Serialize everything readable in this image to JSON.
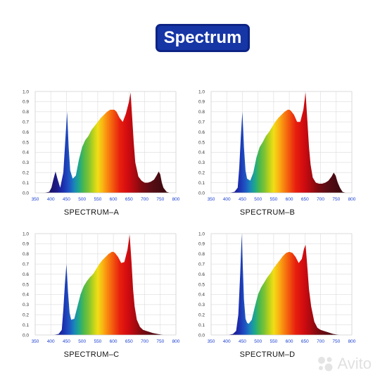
{
  "title": "Spectrum",
  "colors": {
    "badge": "#1636a6",
    "grid": "#d9d9d9",
    "tick_x": "#1a3fd0"
  },
  "watermark": {
    "text": "Avito"
  },
  "chart_data": [
    {
      "type": "area",
      "caption": "SPECTRUM–A",
      "xlim": [
        350,
        800
      ],
      "ylim": [
        0,
        1.0
      ],
      "xticks": [
        350,
        400,
        450,
        500,
        550,
        600,
        650,
        700,
        750,
        800
      ],
      "yticks": [
        0.0,
        0.1,
        0.2,
        0.3,
        0.4,
        0.5,
        0.6,
        0.7,
        0.8,
        0.9,
        1.0
      ],
      "grid": true,
      "fill": "wavelength-spectrum",
      "x": [
        380,
        395,
        402,
        408,
        415,
        422,
        430,
        440,
        447,
        452,
        457,
        462,
        470,
        480,
        490,
        500,
        510,
        520,
        530,
        540,
        550,
        560,
        570,
        580,
        590,
        597,
        603,
        610,
        620,
        630,
        640,
        650,
        655,
        660,
        665,
        670,
        680,
        690,
        700,
        710,
        720,
        730,
        738,
        745,
        750,
        755,
        760,
        770,
        780
      ],
      "y": [
        0,
        0.01,
        0.05,
        0.13,
        0.21,
        0.13,
        0.05,
        0.2,
        0.55,
        0.8,
        0.45,
        0.22,
        0.14,
        0.17,
        0.33,
        0.45,
        0.52,
        0.56,
        0.62,
        0.66,
        0.7,
        0.74,
        0.77,
        0.8,
        0.82,
        0.82,
        0.82,
        0.8,
        0.74,
        0.7,
        0.78,
        0.9,
        0.99,
        0.75,
        0.5,
        0.3,
        0.16,
        0.12,
        0.1,
        0.1,
        0.11,
        0.13,
        0.17,
        0.21,
        0.18,
        0.1,
        0.05,
        0.01,
        0
      ]
    },
    {
      "type": "area",
      "caption": "SPECTRUM–B",
      "xlim": [
        350,
        800
      ],
      "ylim": [
        0,
        1.0
      ],
      "xticks": [
        350,
        400,
        450,
        500,
        550,
        600,
        650,
        700,
        750,
        800
      ],
      "yticks": [
        0.0,
        0.1,
        0.2,
        0.3,
        0.4,
        0.5,
        0.6,
        0.7,
        0.8,
        0.9,
        1.0
      ],
      "grid": true,
      "fill": "wavelength-spectrum",
      "x": [
        410,
        425,
        435,
        440,
        445,
        450,
        455,
        460,
        465,
        475,
        485,
        495,
        505,
        515,
        525,
        535,
        545,
        555,
        565,
        575,
        585,
        595,
        600,
        605,
        615,
        625,
        635,
        645,
        652,
        658,
        663,
        668,
        675,
        685,
        695,
        705,
        715,
        725,
        735,
        742,
        748,
        755,
        762,
        770,
        780
      ],
      "y": [
        0,
        0.01,
        0.05,
        0.25,
        0.55,
        0.8,
        0.45,
        0.22,
        0.14,
        0.12,
        0.2,
        0.35,
        0.45,
        0.5,
        0.56,
        0.6,
        0.65,
        0.7,
        0.74,
        0.77,
        0.8,
        0.82,
        0.82,
        0.81,
        0.77,
        0.7,
        0.7,
        0.82,
        0.99,
        0.7,
        0.45,
        0.28,
        0.15,
        0.1,
        0.09,
        0.09,
        0.1,
        0.12,
        0.16,
        0.2,
        0.17,
        0.1,
        0.05,
        0.01,
        0
      ]
    },
    {
      "type": "area",
      "caption": "SPECTRUM–C",
      "xlim": [
        350,
        800
      ],
      "ylim": [
        0,
        1.0
      ],
      "xticks": [
        350,
        400,
        450,
        500,
        550,
        600,
        650,
        700,
        750,
        800
      ],
      "yticks": [
        0.0,
        0.1,
        0.2,
        0.3,
        0.4,
        0.5,
        0.6,
        0.7,
        0.8,
        0.9,
        1.0
      ],
      "grid": true,
      "fill": "wavelength-spectrum",
      "x": [
        410,
        425,
        435,
        440,
        445,
        450,
        455,
        460,
        465,
        475,
        485,
        495,
        505,
        515,
        525,
        535,
        545,
        555,
        565,
        575,
        585,
        595,
        600,
        605,
        615,
        625,
        635,
        645,
        652,
        658,
        663,
        668,
        675,
        685,
        695,
        705,
        715,
        725,
        740,
        760,
        780
      ],
      "y": [
        0,
        0.01,
        0.05,
        0.25,
        0.5,
        0.7,
        0.42,
        0.22,
        0.15,
        0.16,
        0.28,
        0.4,
        0.48,
        0.53,
        0.57,
        0.6,
        0.65,
        0.7,
        0.74,
        0.77,
        0.8,
        0.82,
        0.82,
        0.81,
        0.77,
        0.71,
        0.72,
        0.84,
        0.99,
        0.72,
        0.45,
        0.28,
        0.15,
        0.08,
        0.05,
        0.04,
        0.03,
        0.02,
        0.01,
        0,
        0
      ]
    },
    {
      "type": "area",
      "caption": "SPECTRUM–D",
      "xlim": [
        350,
        800
      ],
      "ylim": [
        0,
        1.0
      ],
      "xticks": [
        350,
        400,
        450,
        500,
        550,
        600,
        650,
        700,
        750,
        800
      ],
      "yticks": [
        0.0,
        0.1,
        0.2,
        0.3,
        0.4,
        0.5,
        0.6,
        0.7,
        0.8,
        0.9,
        1.0
      ],
      "grid": true,
      "fill": "wavelength-spectrum",
      "x": [
        405,
        420,
        430,
        437,
        443,
        448,
        451,
        455,
        460,
        465,
        470,
        480,
        490,
        500,
        510,
        520,
        530,
        540,
        550,
        560,
        570,
        580,
        590,
        600,
        610,
        620,
        630,
        640,
        647,
        652,
        657,
        663,
        670,
        680,
        690,
        700,
        710,
        720,
        740,
        760,
        780
      ],
      "y": [
        0,
        0.01,
        0.04,
        0.2,
        0.6,
        1.0,
        0.7,
        0.35,
        0.16,
        0.12,
        0.11,
        0.15,
        0.28,
        0.4,
        0.47,
        0.52,
        0.57,
        0.61,
        0.66,
        0.7,
        0.74,
        0.78,
        0.81,
        0.82,
        0.81,
        0.77,
        0.71,
        0.75,
        0.85,
        0.89,
        0.7,
        0.45,
        0.28,
        0.13,
        0.07,
        0.05,
        0.04,
        0.03,
        0.01,
        0,
        0
      ]
    }
  ]
}
